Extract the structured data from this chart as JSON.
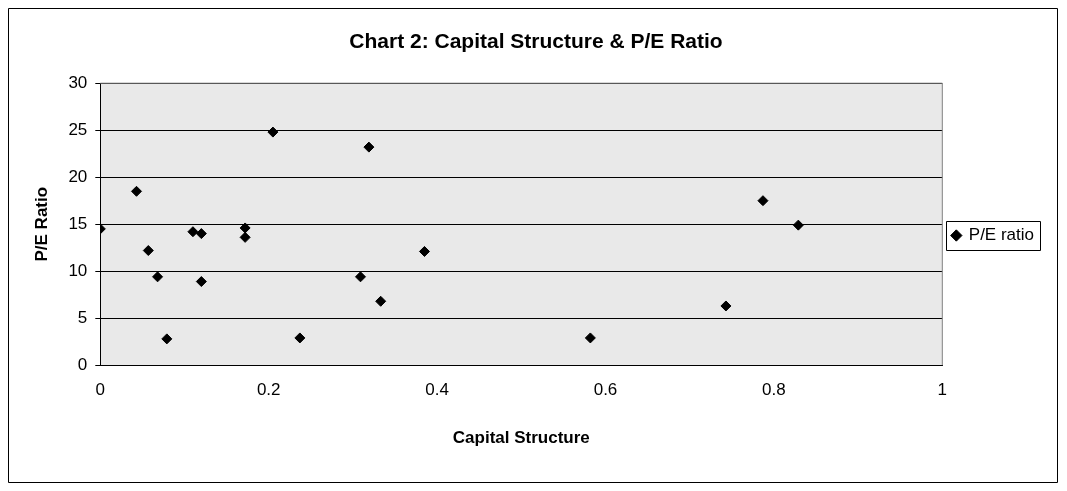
{
  "chart_data": {
    "type": "scatter",
    "title": "Chart 2: Capital Structure & P/E Ratio",
    "xlabel": "Capital Structure",
    "ylabel": "P/E Ratio",
    "xlim": [
      0,
      1
    ],
    "xticks": [
      0,
      0.2,
      0.4,
      0.6,
      0.8,
      1
    ],
    "ylim": [
      0,
      30
    ],
    "yticks": [
      0,
      5,
      10,
      15,
      20,
      25,
      30
    ],
    "grid": "y",
    "legend": "right",
    "marker": "diamond",
    "series": [
      {
        "name": "P/E ratio",
        "color": "#000000",
        "x": [
          0,
          0.043,
          0.057,
          0.068,
          0.079,
          0.11,
          0.12,
          0.12,
          0.172,
          0.172,
          0.205,
          0.237,
          0.309,
          0.319,
          0.333,
          0.385,
          0.582,
          0.743,
          0.787,
          0.829
        ],
        "values": [
          14.5,
          18.5,
          12.2,
          9.4,
          2.8,
          14.2,
          14.0,
          8.9,
          14.6,
          13.6,
          24.8,
          2.9,
          9.4,
          23.2,
          6.8,
          12.1,
          2.9,
          6.3,
          17.5,
          14.9
        ]
      }
    ]
  }
}
